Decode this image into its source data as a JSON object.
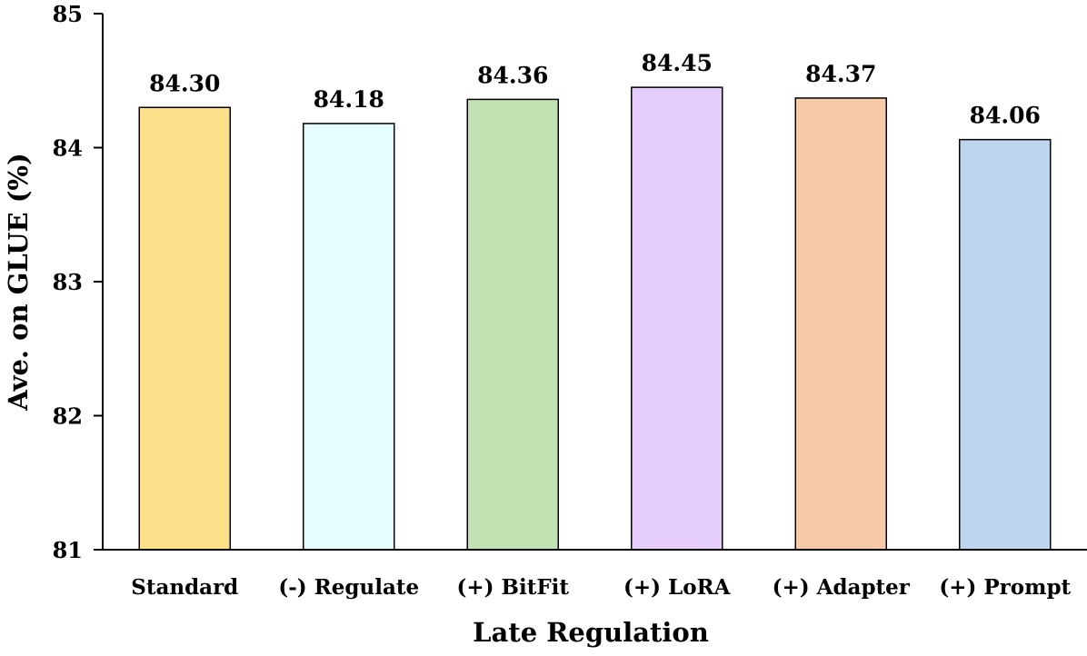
{
  "chart_data": {
    "type": "bar",
    "title": "",
    "xlabel": "Late Regulation",
    "ylabel": "Ave. on GLUE (%)",
    "ylim": [
      81,
      85
    ],
    "yticks": [
      "81",
      "82",
      "83",
      "84",
      "85"
    ],
    "grid": false,
    "categories": [
      "Standard",
      "(-) Regulate",
      "(+) BitFit",
      "(+) LoRA",
      "(+) Adapter",
      "(+) Prompt"
    ],
    "values": [
      84.3,
      84.18,
      84.36,
      84.45,
      84.37,
      84.06
    ],
    "data_labels": [
      "84.30",
      "84.18",
      "84.36",
      "84.45",
      "84.37",
      "84.06"
    ],
    "colors": [
      "#FFE08A",
      "#E5FDFF",
      "#C3E2B3",
      "#E4CCFB",
      "#F8C9A9",
      "#BDD6EE"
    ]
  }
}
